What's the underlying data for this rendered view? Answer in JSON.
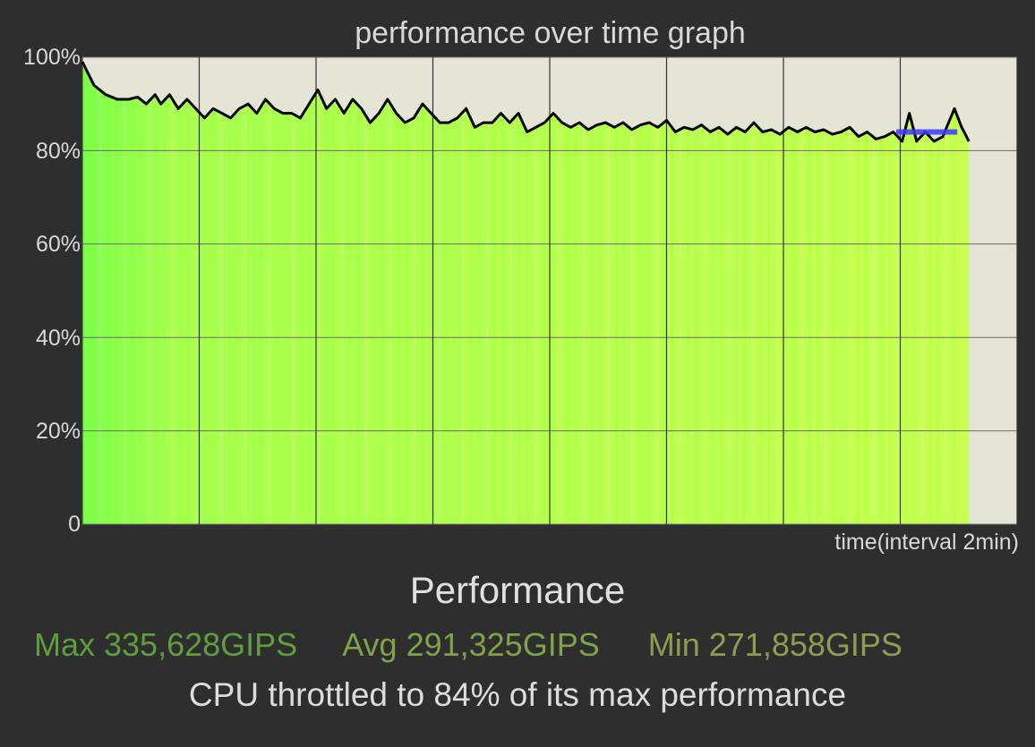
{
  "chart_data": {
    "type": "area",
    "title": "performance over time graph",
    "xlabel": "time(interval 2min)",
    "ylabel": "",
    "y_ticks": [
      "0",
      "20%",
      "40%",
      "60%",
      "80%",
      "100%"
    ],
    "ylim": [
      0,
      100
    ],
    "grid": true,
    "x_unit": "minutes",
    "x_range": [
      0,
      60
    ],
    "series": [
      {
        "values": [
          [
            0,
            99
          ],
          [
            0.8,
            94
          ],
          [
            1.6,
            92
          ],
          [
            2.4,
            91
          ],
          [
            3.2,
            91
          ],
          [
            3.8,
            91.5
          ],
          [
            4.4,
            90
          ],
          [
            5.0,
            92
          ],
          [
            5.4,
            90
          ],
          [
            6.0,
            92
          ],
          [
            6.6,
            89
          ],
          [
            7.2,
            91
          ],
          [
            7.8,
            89
          ],
          [
            8.4,
            87
          ],
          [
            9.0,
            89
          ],
          [
            9.6,
            88
          ],
          [
            10.2,
            87
          ],
          [
            10.8,
            89
          ],
          [
            11.4,
            90
          ],
          [
            12.0,
            88
          ],
          [
            12.6,
            91
          ],
          [
            13.2,
            89
          ],
          [
            13.8,
            88
          ],
          [
            14.4,
            88
          ],
          [
            15.0,
            87
          ],
          [
            15.6,
            90
          ],
          [
            16.2,
            93
          ],
          [
            16.8,
            89
          ],
          [
            17.4,
            91
          ],
          [
            18.0,
            88
          ],
          [
            18.6,
            91
          ],
          [
            19.2,
            89
          ],
          [
            19.8,
            86
          ],
          [
            20.4,
            88
          ],
          [
            21.0,
            91
          ],
          [
            21.6,
            88
          ],
          [
            22.2,
            86
          ],
          [
            22.8,
            87
          ],
          [
            23.4,
            90
          ],
          [
            24.0,
            88
          ],
          [
            24.6,
            86
          ],
          [
            25.2,
            86
          ],
          [
            25.8,
            87
          ],
          [
            26.4,
            89
          ],
          [
            27.0,
            85
          ],
          [
            27.6,
            86
          ],
          [
            28.2,
            86
          ],
          [
            28.8,
            88
          ],
          [
            29.4,
            86
          ],
          [
            30.0,
            88
          ],
          [
            30.6,
            84
          ],
          [
            31.2,
            85
          ],
          [
            31.8,
            86
          ],
          [
            32.4,
            88
          ],
          [
            33.0,
            86
          ],
          [
            33.6,
            85
          ],
          [
            34.2,
            86
          ],
          [
            34.8,
            84.5
          ],
          [
            35.4,
            85.5
          ],
          [
            36.0,
            86
          ],
          [
            36.6,
            85
          ],
          [
            37.2,
            86
          ],
          [
            37.8,
            84.5
          ],
          [
            38.4,
            85.5
          ],
          [
            39.0,
            86
          ],
          [
            39.6,
            85
          ],
          [
            40.2,
            86.5
          ],
          [
            40.8,
            84
          ],
          [
            41.4,
            85
          ],
          [
            42.0,
            84.5
          ],
          [
            42.6,
            85.5
          ],
          [
            43.2,
            84
          ],
          [
            43.8,
            85
          ],
          [
            44.4,
            83.5
          ],
          [
            45.0,
            85
          ],
          [
            45.6,
            84
          ],
          [
            46.2,
            86
          ],
          [
            46.8,
            84
          ],
          [
            47.4,
            84.5
          ],
          [
            48.0,
            83.5
          ],
          [
            48.6,
            85
          ],
          [
            49.2,
            84
          ],
          [
            49.8,
            85
          ],
          [
            50.4,
            84
          ],
          [
            51.0,
            84.5
          ],
          [
            51.6,
            83.5
          ],
          [
            52.2,
            84
          ],
          [
            52.8,
            85
          ],
          [
            53.4,
            83
          ],
          [
            54.0,
            84
          ],
          [
            54.6,
            82.5
          ],
          [
            55.2,
            83
          ],
          [
            55.8,
            84
          ],
          [
            56.4,
            82
          ],
          [
            56.9,
            88
          ],
          [
            57.4,
            82
          ],
          [
            58.0,
            84
          ],
          [
            58.6,
            82
          ],
          [
            59.2,
            83
          ],
          [
            59.6,
            86
          ],
          [
            60.0,
            89
          ],
          [
            60.5,
            85
          ],
          [
            61.0,
            82
          ]
        ]
      }
    ],
    "annotations": [
      {
        "type": "highlight",
        "x": [
          56,
          60.2
        ],
        "y": 84,
        "color": "#3a3aff"
      }
    ],
    "colors": {
      "background": "#2e2e2e",
      "plot_background": "#e5e5d6",
      "fill_start": "#7cff4a",
      "fill_end": "#c8ff50",
      "line": "#000000",
      "grid": "#6a6a6a"
    }
  },
  "performance": {
    "title": "Performance",
    "max": "Max 335,628GIPS",
    "avg": "Avg 291,325GIPS",
    "min": "Min 271,858GIPS",
    "summary": "CPU throttled to 84% of its max performance"
  }
}
